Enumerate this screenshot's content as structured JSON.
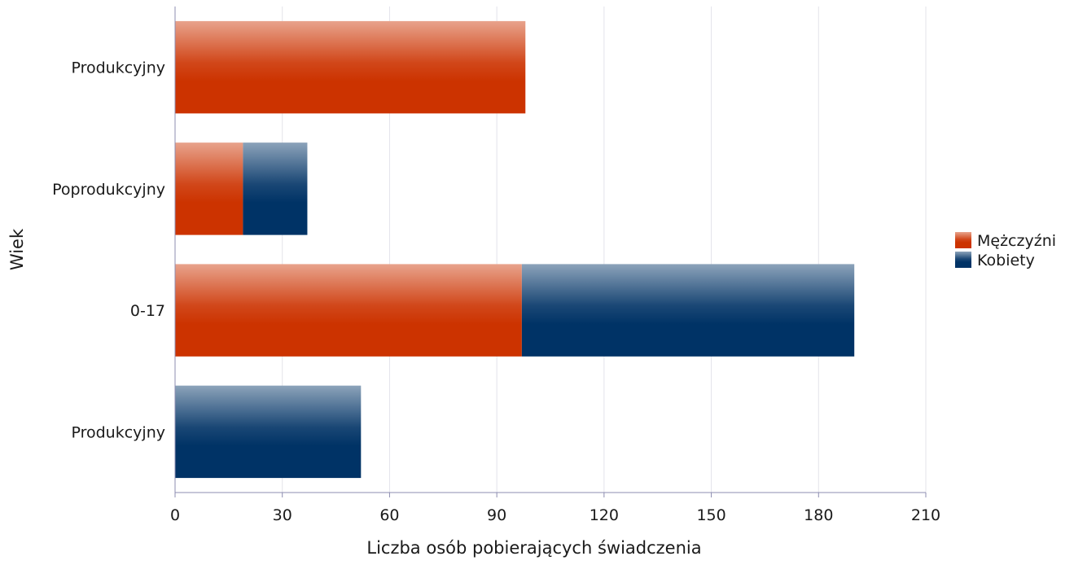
{
  "chart_data": {
    "type": "bar",
    "orientation": "horizontal",
    "stacked": true,
    "categories": [
      "Produkcyjny",
      "Poprodukcyjny",
      "0-17",
      "Produkcyjny"
    ],
    "series": [
      {
        "name": "Mężczyźni",
        "values": [
          98,
          19,
          97,
          0
        ],
        "color": "#cc3300"
      },
      {
        "name": "Kobiety",
        "values": [
          0,
          18,
          93,
          52
        ],
        "color": "#003366"
      }
    ],
    "xlabel": "Liczba osób pobierających świadczenia",
    "ylabel": "Wiek",
    "xlim": [
      0,
      210
    ],
    "xticks": [
      "0",
      "30",
      "60",
      "90",
      "120",
      "150",
      "180",
      "210"
    ],
    "grid": "vertical",
    "legend": "right"
  }
}
